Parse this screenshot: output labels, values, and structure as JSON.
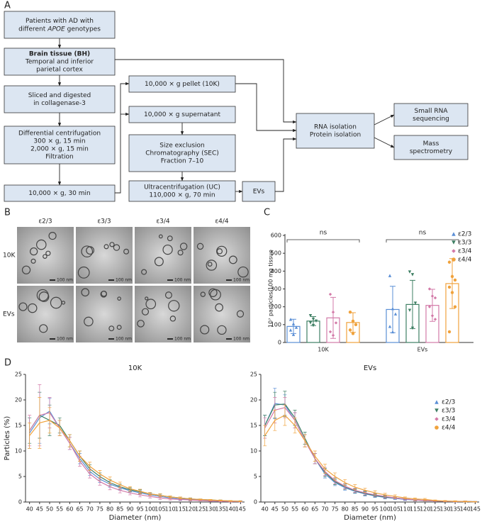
{
  "panel_labels": [
    "A",
    "B",
    "C",
    "D"
  ],
  "flowchart": {
    "nodes": [
      {
        "lines": [
          "Patients with AD with"
        ],
        "mixed_line": [
          "different",
          "APOE",
          "genotypes"
        ]
      },
      {
        "title": "Brain tissue (BH)",
        "lines": [
          "Temporal and inferior",
          "parietal cortex"
        ]
      },
      {
        "lines": [
          "Sliced and digested",
          "in collagenase-3"
        ]
      },
      {
        "lines": [
          "Differential centrifugation",
          "300 × g, 15 min",
          "2,000 × g, 15 min",
          "Filtration"
        ]
      },
      {
        "lines": [
          "10,000 × g, 30 min"
        ]
      },
      {
        "lines": [
          "10,000 × g pellet (10K)"
        ]
      },
      {
        "lines": [
          "10,000 × g supernatant"
        ]
      },
      {
        "lines": [
          "Size exclusion",
          "Chromatography (SEC)",
          "Fraction 7–10"
        ]
      },
      {
        "lines": [
          "Ultracentrifugation (UC)",
          "110,000 × g, 70 min"
        ]
      },
      {
        "lines": [
          "EVs"
        ]
      },
      {
        "lines": [
          "RNA isolation",
          "Protein isolation"
        ]
      },
      {
        "lines": [
          "Small RNA",
          "sequencing"
        ]
      },
      {
        "lines": [
          "Mass",
          "spectrometry"
        ]
      }
    ]
  },
  "micrographs": {
    "columns": [
      "ε2/3",
      "ε3/3",
      "ε3/4",
      "ε4/4"
    ],
    "rows": [
      "10K",
      "EVs"
    ],
    "scale_bar": "100 nm"
  },
  "chart_data": [
    {
      "type": "bar",
      "y_label": "10⁷ particles/100 mg tissue",
      "categories": [
        "10K",
        "EVs"
      ],
      "ylim": [
        0,
        600
      ],
      "yticks": [
        0,
        100,
        200,
        300,
        400,
        500,
        600
      ],
      "annotations": [
        "ns",
        "ns"
      ],
      "legend": "top-right",
      "series": [
        {
          "name": "ε2/3",
          "color": "#5b8fd6",
          "marker": "triangle-up",
          "values": [
            90,
            185
          ],
          "errors": [
            40,
            130
          ],
          "points": [
            [
              130,
              105,
              85,
              70,
              45
            ],
            [
              375,
              190,
              160,
              90,
              60
            ]
          ]
        },
        {
          "name": "ε3/3",
          "color": "#3e7f63",
          "marker": "triangle-down",
          "values": [
            120,
            213
          ],
          "errors": [
            25,
            135
          ],
          "points": [
            [
              150,
              130,
              120,
              110,
              95
            ],
            [
              395,
              380,
              220,
              180,
              80
            ]
          ]
        },
        {
          "name": "ε3/4",
          "color": "#d37aa8",
          "marker": "diamond",
          "values": [
            138,
            208
          ],
          "errors": [
            115,
            90
          ],
          "points": [
            [
              270,
              170,
              110,
              60,
              40
            ],
            [
              300,
              260,
              250,
              200,
              150,
              130
            ]
          ]
        },
        {
          "name": "ε4/4",
          "color": "#f0a23c",
          "marker": "circle",
          "values": [
            112,
            330
          ],
          "errors": [
            55,
            140
          ],
          "points": [
            [
              170,
              120,
              100,
              70,
              50
            ],
            [
              450,
              370,
              350,
              310,
              280,
              200,
              60
            ]
          ]
        }
      ]
    },
    {
      "type": "line",
      "title": "10K",
      "x_label": "Diameter (nm)",
      "y_label": "Particles (%)",
      "x": [
        40,
        45,
        50,
        55,
        60,
        65,
        70,
        75,
        80,
        85,
        90,
        95,
        100,
        105,
        110,
        115,
        120,
        125,
        130,
        135,
        140,
        145
      ],
      "xlim": [
        38,
        147
      ],
      "xticks": [
        40,
        45,
        50,
        55,
        60,
        65,
        70,
        75,
        80,
        85,
        90,
        95,
        100,
        105,
        110,
        115,
        120,
        125,
        130,
        135,
        140,
        145
      ],
      "ylim": [
        0,
        25
      ],
      "yticks": [
        0,
        5,
        10,
        15,
        20,
        25
      ],
      "series": [
        {
          "color": "#5b8fd6",
          "values": [
            13.5,
            16.5,
            17.8,
            14.5,
            11.5,
            8.5,
            6.0,
            4.5,
            3.5,
            2.8,
            2.2,
            1.8,
            1.4,
            1.1,
            0.8,
            0.6,
            0.5,
            0.4,
            0.3,
            0.2,
            0.15,
            0.1
          ],
          "errors": [
            3,
            5,
            2.5,
            1.5,
            1.2,
            1,
            0.8,
            0.7,
            0.6,
            0.5,
            0.4,
            0.4,
            0.3,
            0.3,
            0.2,
            0.2,
            0.2,
            0.1,
            0.1,
            0.1,
            0.1,
            0.1
          ]
        },
        {
          "color": "#3e7f63",
          "values": [
            14,
            17,
            16,
            15,
            12,
            9,
            6.5,
            5,
            3.8,
            3.0,
            2.4,
            2.0,
            1.6,
            1.3,
            1.0,
            0.8,
            0.6,
            0.5,
            0.4,
            0.3,
            0.2,
            0.15
          ],
          "errors": [
            2.5,
            4.5,
            3,
            1.5,
            1.2,
            1,
            0.8,
            0.7,
            0.6,
            0.5,
            0.4,
            0.4,
            0.3,
            0.3,
            0.2,
            0.2,
            0.2,
            0.1,
            0.1,
            0.1,
            0.1,
            0.1
          ]
        },
        {
          "color": "#d37aa8",
          "values": [
            14,
            17,
            17.5,
            14.5,
            11.5,
            8,
            5.5,
            4,
            3,
            2.3,
            1.8,
            1.4,
            1.1,
            0.8,
            0.6,
            0.5,
            0.4,
            0.3,
            0.2,
            0.15,
            0.1,
            0.1
          ],
          "errors": [
            3,
            6,
            3,
            1.5,
            1.2,
            1,
            0.8,
            0.7,
            0.6,
            0.5,
            0.4,
            0.4,
            0.3,
            0.3,
            0.2,
            0.2,
            0.2,
            0.1,
            0.1,
            0.1,
            0.1,
            0.1
          ]
        },
        {
          "color": "#f0a23c",
          "values": [
            13,
            15.5,
            16,
            14.5,
            12,
            9,
            7,
            5.5,
            4.3,
            3.4,
            2.6,
            2.1,
            1.6,
            1.3,
            1.0,
            0.8,
            0.6,
            0.5,
            0.4,
            0.3,
            0.2,
            0.15
          ],
          "errors": [
            2.5,
            5,
            2.5,
            1.5,
            1.2,
            1,
            0.8,
            0.7,
            0.6,
            0.5,
            0.4,
            0.4,
            0.3,
            0.3,
            0.2,
            0.2,
            0.2,
            0.1,
            0.1,
            0.1,
            0.1,
            0.1
          ]
        }
      ]
    },
    {
      "type": "line",
      "title": "EVs",
      "x_label": "Diameter (nm)",
      "legend": "top-right",
      "x": [
        40,
        45,
        50,
        55,
        60,
        65,
        70,
        75,
        80,
        85,
        90,
        95,
        100,
        105,
        110,
        115,
        120,
        125,
        130,
        135,
        140,
        145
      ],
      "xlim": [
        38,
        147
      ],
      "xticks": [
        40,
        45,
        50,
        55,
        60,
        65,
        70,
        75,
        80,
        85,
        90,
        95,
        100,
        105,
        110,
        115,
        120,
        125,
        130,
        135,
        140,
        145
      ],
      "ylim": [
        0,
        25
      ],
      "yticks": [
        0,
        5,
        10,
        15,
        20,
        25
      ],
      "series": [
        {
          "name": "ε2/3",
          "color": "#5b8fd6",
          "marker": "triangle-up",
          "values": [
            15,
            19.3,
            19,
            16,
            12,
            8.5,
            5.5,
            3.8,
            2.8,
            2.1,
            1.6,
            1.2,
            0.9,
            0.7,
            0.5,
            0.4,
            0.3,
            0.2,
            0.15,
            0.1,
            0.1,
            0.05
          ],
          "errors": [
            2,
            3,
            2,
            1.5,
            1.2,
            1,
            0.8,
            0.6,
            0.5,
            0.4,
            0.4,
            0.3,
            0.3,
            0.2,
            0.2,
            0.2,
            0.1,
            0.1,
            0.1,
            0.1,
            0.1,
            0.05
          ]
        },
        {
          "name": "ε3/3",
          "color": "#3e7f63",
          "marker": "triangle-down",
          "values": [
            15,
            19,
            19.2,
            16.5,
            12.5,
            8.5,
            5.8,
            4,
            3,
            2.2,
            1.7,
            1.3,
            1.0,
            0.8,
            0.6,
            0.4,
            0.3,
            0.2,
            0.15,
            0.1,
            0.1,
            0.05
          ],
          "errors": [
            2,
            2.5,
            2.5,
            1.5,
            1.2,
            1,
            0.8,
            0.6,
            0.5,
            0.4,
            0.4,
            0.3,
            0.3,
            0.2,
            0.2,
            0.2,
            0.1,
            0.1,
            0.1,
            0.1,
            0.1,
            0.05
          ]
        },
        {
          "name": "ε3/4",
          "color": "#d37aa8",
          "marker": "diamond",
          "values": [
            14.5,
            18,
            18.5,
            16,
            12,
            8.5,
            6,
            4.2,
            3.1,
            2.3,
            1.8,
            1.4,
            1.1,
            0.8,
            0.6,
            0.4,
            0.3,
            0.2,
            0.15,
            0.1,
            0.1,
            0.05
          ],
          "errors": [
            2,
            2.5,
            2,
            1.5,
            1.2,
            1,
            0.8,
            0.6,
            0.5,
            0.4,
            0.4,
            0.3,
            0.3,
            0.2,
            0.2,
            0.2,
            0.1,
            0.1,
            0.1,
            0.1,
            0.1,
            0.05
          ]
        },
        {
          "name": "ε4/4",
          "color": "#f0a23c",
          "marker": "circle",
          "values": [
            13,
            16,
            17,
            15,
            12,
            9,
            6.5,
            5,
            3.8,
            2.9,
            2.3,
            1.8,
            1.4,
            1.1,
            0.8,
            0.6,
            0.5,
            0.3,
            0.2,
            0.15,
            0.1,
            0.05
          ],
          "errors": [
            2,
            2,
            2,
            1.5,
            1.2,
            1,
            0.9,
            0.7,
            0.6,
            0.5,
            0.4,
            0.4,
            0.3,
            0.3,
            0.2,
            0.2,
            0.2,
            0.1,
            0.1,
            0.1,
            0.1,
            0.05
          ]
        }
      ]
    }
  ]
}
